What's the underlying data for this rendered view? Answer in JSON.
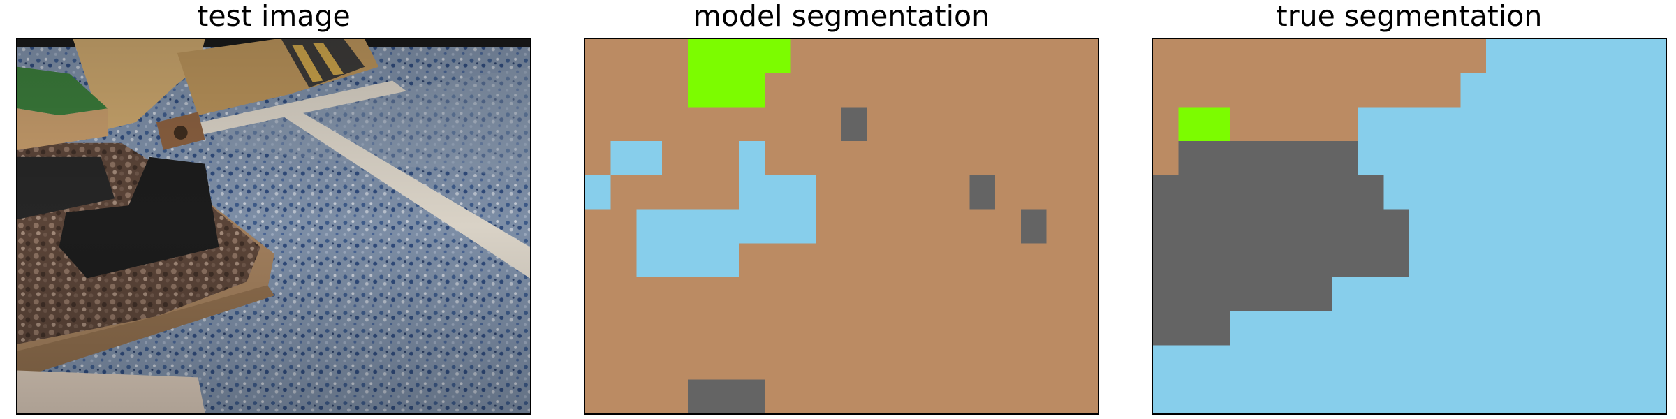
{
  "panels": [
    {
      "title": "test image"
    },
    {
      "title": "model segmentation"
    },
    {
      "title": "true segmentation"
    }
  ],
  "segmentation_classes": [
    {
      "id": 0,
      "color": "#bb8b63"
    },
    {
      "id": 1,
      "color": "#87ceeb"
    },
    {
      "id": 2,
      "color": "#646464"
    },
    {
      "id": 3,
      "color": "#7cfc00"
    }
  ],
  "model_segmentation": [
    [
      0,
      0,
      0,
      0,
      3,
      3,
      3,
      3,
      0,
      0,
      0,
      0,
      0,
      0,
      0,
      0,
      0,
      0,
      0,
      0
    ],
    [
      0,
      0,
      0,
      0,
      3,
      3,
      3,
      0,
      0,
      0,
      0,
      0,
      0,
      0,
      0,
      0,
      0,
      0,
      0,
      0
    ],
    [
      0,
      0,
      0,
      0,
      0,
      0,
      0,
      0,
      0,
      0,
      2,
      0,
      0,
      0,
      0,
      0,
      0,
      0,
      0,
      0
    ],
    [
      0,
      1,
      1,
      0,
      0,
      0,
      1,
      0,
      0,
      0,
      0,
      0,
      0,
      0,
      0,
      0,
      0,
      0,
      0,
      0
    ],
    [
      1,
      0,
      0,
      0,
      0,
      0,
      1,
      1,
      1,
      0,
      0,
      0,
      0,
      0,
      0,
      2,
      0,
      0,
      0,
      0
    ],
    [
      0,
      0,
      1,
      1,
      1,
      1,
      1,
      1,
      1,
      0,
      0,
      0,
      0,
      0,
      0,
      0,
      0,
      2,
      0,
      0
    ],
    [
      0,
      0,
      1,
      1,
      1,
      1,
      0,
      0,
      0,
      0,
      0,
      0,
      0,
      0,
      0,
      0,
      0,
      0,
      0,
      0
    ],
    [
      0,
      0,
      0,
      0,
      0,
      0,
      0,
      0,
      0,
      0,
      0,
      0,
      0,
      0,
      0,
      0,
      0,
      0,
      0,
      0
    ],
    [
      0,
      0,
      0,
      0,
      0,
      0,
      0,
      0,
      0,
      0,
      0,
      0,
      0,
      0,
      0,
      0,
      0,
      0,
      0,
      0
    ],
    [
      0,
      0,
      0,
      0,
      0,
      0,
      0,
      0,
      0,
      0,
      0,
      0,
      0,
      0,
      0,
      0,
      0,
      0,
      0,
      0
    ],
    [
      0,
      0,
      0,
      0,
      2,
      2,
      2,
      0,
      0,
      0,
      0,
      0,
      0,
      0,
      0,
      0,
      0,
      0,
      0,
      0
    ]
  ],
  "true_segmentation": [
    [
      0,
      0,
      0,
      0,
      0,
      0,
      0,
      0,
      0,
      0,
      0,
      0,
      0,
      1,
      1,
      1,
      1,
      1,
      1,
      1
    ],
    [
      0,
      0,
      0,
      0,
      0,
      0,
      0,
      0,
      0,
      0,
      0,
      0,
      1,
      1,
      1,
      1,
      1,
      1,
      1,
      1
    ],
    [
      0,
      3,
      3,
      0,
      0,
      0,
      0,
      0,
      1,
      1,
      1,
      1,
      1,
      1,
      1,
      1,
      1,
      1,
      1,
      1
    ],
    [
      0,
      2,
      2,
      2,
      2,
      2,
      2,
      2,
      1,
      1,
      1,
      1,
      1,
      1,
      1,
      1,
      1,
      1,
      1,
      1
    ],
    [
      2,
      2,
      2,
      2,
      2,
      2,
      2,
      2,
      2,
      1,
      1,
      1,
      1,
      1,
      1,
      1,
      1,
      1,
      1,
      1
    ],
    [
      2,
      2,
      2,
      2,
      2,
      2,
      2,
      2,
      2,
      2,
      1,
      1,
      1,
      1,
      1,
      1,
      1,
      1,
      1,
      1
    ],
    [
      2,
      2,
      2,
      2,
      2,
      2,
      2,
      2,
      2,
      2,
      1,
      1,
      1,
      1,
      1,
      1,
      1,
      1,
      1,
      1
    ],
    [
      2,
      2,
      2,
      2,
      2,
      2,
      2,
      1,
      1,
      1,
      1,
      1,
      1,
      1,
      1,
      1,
      1,
      1,
      1,
      1
    ],
    [
      2,
      2,
      2,
      1,
      1,
      1,
      1,
      1,
      1,
      1,
      1,
      1,
      1,
      1,
      1,
      1,
      1,
      1,
      1,
      1
    ],
    [
      1,
      1,
      1,
      1,
      1,
      1,
      1,
      1,
      1,
      1,
      1,
      1,
      1,
      1,
      1,
      1,
      1,
      1,
      1,
      1
    ],
    [
      1,
      1,
      1,
      1,
      1,
      1,
      1,
      1,
      1,
      1,
      1,
      1,
      1,
      1,
      1,
      1,
      1,
      1,
      1,
      1
    ]
  ]
}
